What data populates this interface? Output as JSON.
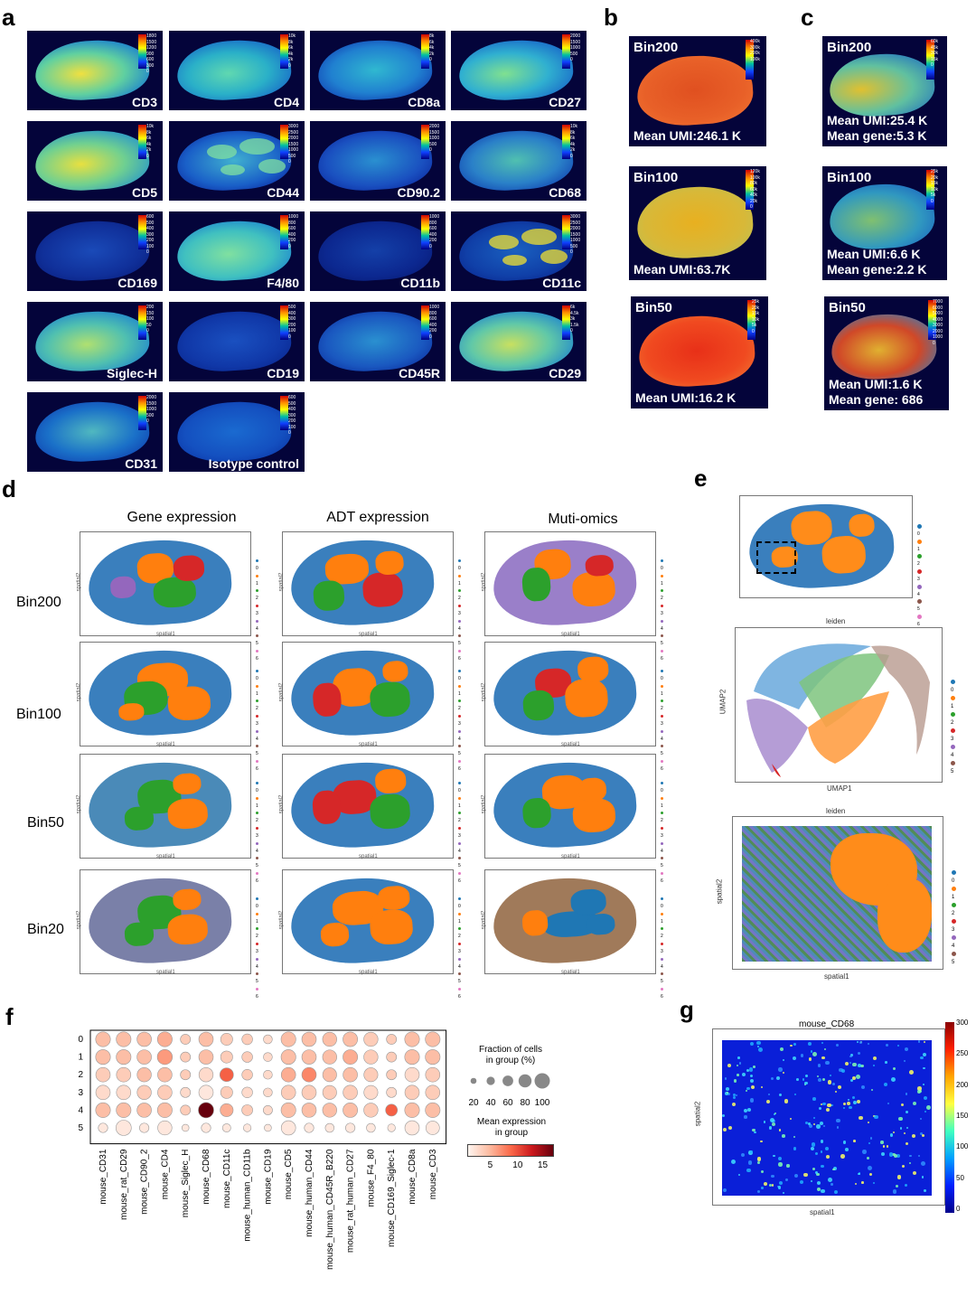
{
  "panel_letters": {
    "a": "a",
    "b": "b",
    "c": "c",
    "d": "d",
    "e": "e",
    "f": "f",
    "g": "g"
  },
  "panel_a": {
    "tiles": [
      {
        "label": "CD3",
        "ticks": [
          "1800",
          "1500",
          "1200",
          "900",
          "600",
          "300",
          "0"
        ]
      },
      {
        "label": "CD4",
        "ticks": [
          "10k",
          "8k",
          "6k",
          "4k",
          "2k",
          "0"
        ]
      },
      {
        "label": "CD8a",
        "ticks": [
          "8k",
          "6k",
          "4k",
          "2k",
          "0"
        ]
      },
      {
        "label": "CD27",
        "ticks": [
          "2000",
          "1500",
          "1000",
          "500",
          "0"
        ]
      },
      {
        "label": "CD5",
        "ticks": [
          "10k",
          "8k",
          "6k",
          "4k",
          "2k",
          "0"
        ]
      },
      {
        "label": "CD44",
        "ticks": [
          "3000",
          "2500",
          "2000",
          "1500",
          "1000",
          "500",
          "0"
        ]
      },
      {
        "label": "CD90.2",
        "ticks": [
          "2000",
          "1500",
          "1000",
          "500",
          "0"
        ]
      },
      {
        "label": "CD68",
        "ticks": [
          "10k",
          "8k",
          "6k",
          "4k",
          "2k",
          "0"
        ]
      },
      {
        "label": "CD169",
        "ticks": [
          "600",
          "500",
          "400",
          "300",
          "200",
          "100",
          "0"
        ]
      },
      {
        "label": "F4/80",
        "ticks": [
          "1000",
          "800",
          "600",
          "400",
          "200",
          "0"
        ]
      },
      {
        "label": "CD11b",
        "ticks": [
          "1000",
          "800",
          "600",
          "400",
          "200",
          "0"
        ]
      },
      {
        "label": "CD11c",
        "ticks": [
          "3000",
          "2500",
          "2000",
          "1500",
          "1000",
          "500",
          "0"
        ]
      },
      {
        "label": "Siglec-H",
        "ticks": [
          "200",
          "150",
          "100",
          "50",
          "0"
        ]
      },
      {
        "label": "CD19",
        "ticks": [
          "500",
          "400",
          "300",
          "200",
          "100",
          "0"
        ]
      },
      {
        "label": "CD45R",
        "ticks": [
          "1000",
          "800",
          "600",
          "400",
          "200",
          "0"
        ]
      },
      {
        "label": "CD29",
        "ticks": [
          "6k",
          "4.5k",
          "3k",
          "1.5k",
          "0"
        ]
      },
      {
        "label": "CD31",
        "ticks": [
          "2000",
          "1500",
          "1000",
          "500",
          "0"
        ]
      },
      {
        "label": "Isotype control",
        "ticks": [
          "600",
          "500",
          "400",
          "300",
          "200",
          "100",
          "0"
        ]
      }
    ]
  },
  "panel_b": {
    "tiles": [
      {
        "bin": "Bin200",
        "text": "Mean UMI:246.1 K",
        "ticks": [
          "400k",
          "300k",
          "200k",
          "100k"
        ]
      },
      {
        "bin": "Bin100",
        "text": "Mean UMI:63.7K",
        "ticks": [
          "120k",
          "100k",
          "80k",
          "60k",
          "40k",
          "20k",
          "0"
        ]
      },
      {
        "bin": "Bin50",
        "text": "Mean UMI:16.2 K",
        "ticks": [
          "25k",
          "20k",
          "15k",
          "10k",
          "5k",
          "0"
        ]
      }
    ]
  },
  "panel_c": {
    "tiles": [
      {
        "bin": "Bin200",
        "line1": "Mean UMI:25.4 K",
        "line2": "Mean gene:5.3 K",
        "ticks": [
          "60k",
          "45k",
          "30k",
          "15k",
          "0"
        ]
      },
      {
        "bin": "Bin100",
        "line1": "Mean UMI:6.6 K",
        "line2": "Mean gene:2.2 K",
        "ticks": [
          "25k",
          "20k",
          "15k",
          "10k",
          "5k",
          "0"
        ]
      },
      {
        "bin": "Bin50",
        "line1": "Mean UMI:1.6 K",
        "line2": "Mean gene: 686",
        "ticks": [
          "7000",
          "6000",
          "5000",
          "4000",
          "3000",
          "2000",
          "1000",
          "0"
        ]
      }
    ]
  },
  "panel_d": {
    "columns": [
      "Gene expression",
      "ADT expression",
      "Muti-omics"
    ],
    "rows": [
      "Bin200",
      "Bin100",
      "Bin50",
      "Bin20"
    ],
    "legend": [
      "0",
      "1",
      "2",
      "3",
      "4",
      "5",
      "6"
    ],
    "axis_x": "spatial1",
    "axis_y": "spatial2"
  },
  "panel_e": {
    "top_legend": [
      "0",
      "1",
      "2",
      "3",
      "4",
      "5",
      "6"
    ],
    "umap_title": "leiden",
    "umap_x": "UMAP1",
    "umap_y": "UMAP2",
    "umap_legend": [
      "0",
      "1",
      "2",
      "3",
      "4",
      "5"
    ],
    "zoom_title": "leiden",
    "zoom_x": "spatial1",
    "zoom_y": "spatial2",
    "zoom_legend": [
      "0",
      "1",
      "2",
      "3",
      "4",
      "5"
    ]
  },
  "panel_f": {
    "legend_size_title": "Fraction of cells\nin group (%)",
    "legend_sizes": [
      "20",
      "40",
      "60",
      "80",
      "100"
    ],
    "legend_color_title": "Mean expression\nin group",
    "legend_color_ticks": [
      "5",
      "10",
      "15"
    ]
  },
  "panel_g": {
    "title": "mouse_CD68",
    "xlabel": "spatial1",
    "ylabel": "spatial2",
    "cbar_ticks": [
      "300",
      "250",
      "200",
      "150",
      "100",
      "50",
      "0"
    ]
  },
  "colors": {
    "tissue_bg": "#04043a",
    "cluster": [
      "#1f77b4",
      "#ff7f0e",
      "#2ca02c",
      "#d62728",
      "#9467bd",
      "#8c564b",
      "#e377c2"
    ]
  },
  "chart_data": {
    "type": "scatter",
    "title": "",
    "xlabel": "",
    "ylabel": "",
    "groups": [
      "0",
      "1",
      "2",
      "3",
      "4",
      "5"
    ],
    "markers": [
      "mouse_CD31",
      "mouse_rat_CD29",
      "mouse_CD90_2",
      "mouse_CD4",
      "mouse_Siglec_H",
      "mouse_CD68",
      "mouse_CD11c",
      "mouse_human_CD11b",
      "mouse_CD19",
      "mouse_CD5",
      "mouse_human_CD44",
      "mouse_human_CD45R_B220",
      "mouse_rat_human_CD27",
      "mouse_F4_80",
      "mouse_CD169_Siglec-1",
      "mouse_CD8a",
      "mouse_CD3"
    ],
    "fraction_pct": [
      [
        95,
        95,
        92,
        95,
        55,
        92,
        72,
        60,
        45,
        95,
        92,
        90,
        94,
        90,
        55,
        95,
        95
      ],
      [
        95,
        95,
        92,
        97,
        55,
        92,
        72,
        60,
        45,
        95,
        92,
        90,
        94,
        90,
        55,
        95,
        95
      ],
      [
        92,
        92,
        90,
        92,
        55,
        90,
        85,
        60,
        45,
        92,
        92,
        88,
        92,
        88,
        55,
        92,
        92
      ],
      [
        92,
        92,
        90,
        92,
        55,
        92,
        72,
        60,
        45,
        92,
        92,
        88,
        92,
        88,
        55,
        92,
        92
      ],
      [
        95,
        95,
        92,
        95,
        55,
        100,
        80,
        62,
        48,
        95,
        92,
        90,
        94,
        90,
        70,
        95,
        95
      ],
      [
        50,
        100,
        50,
        90,
        30,
        50,
        40,
        35,
        30,
        92,
        50,
        45,
        50,
        45,
        35,
        92,
        85
      ]
    ],
    "mean_expr": [
      [
        4,
        4,
        4,
        5,
        3,
        4,
        3,
        3,
        2,
        4,
        4,
        4,
        4,
        3,
        3,
        4,
        4
      ],
      [
        4,
        4,
        4,
        6,
        3,
        4,
        3,
        3,
        2,
        4,
        4,
        4,
        5,
        3,
        3,
        4,
        4
      ],
      [
        3,
        3,
        4,
        4,
        3,
        2,
        9,
        3,
        2,
        5,
        7,
        4,
        4,
        3,
        3,
        2,
        3
      ],
      [
        2,
        2,
        3,
        3,
        2,
        1,
        3,
        2,
        2,
        3,
        3,
        3,
        3,
        2,
        2,
        3,
        3
      ],
      [
        4,
        4,
        4,
        4,
        3,
        17,
        5,
        3,
        2,
        4,
        4,
        4,
        4,
        3,
        9,
        4,
        4
      ],
      [
        1,
        1,
        1,
        1,
        1,
        1,
        1,
        1,
        1,
        1,
        1,
        1,
        1,
        1,
        1,
        1,
        1
      ]
    ],
    "color_range": [
      0,
      17
    ]
  }
}
